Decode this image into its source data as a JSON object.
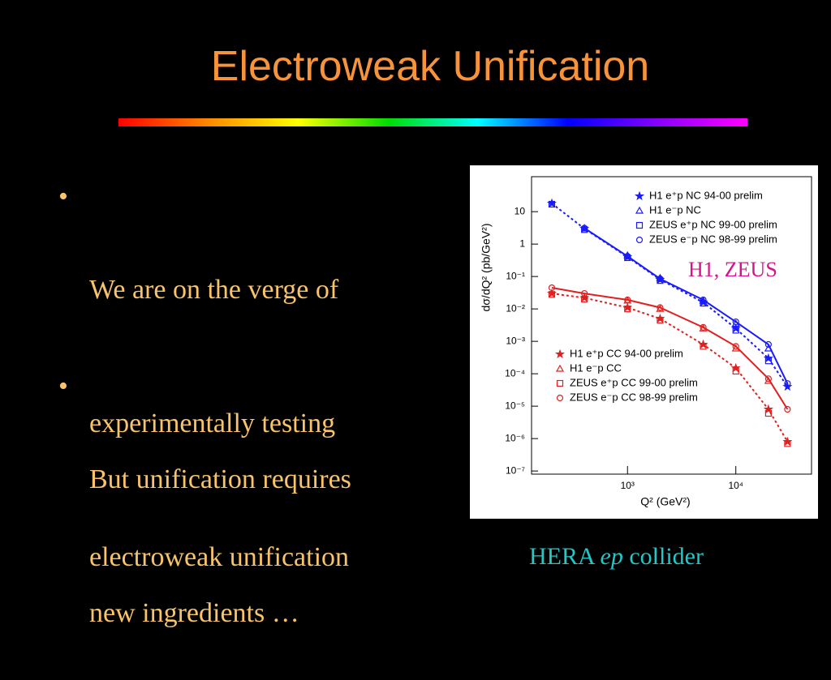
{
  "title": "Electroweak Unification",
  "bullets": [
    {
      "lines": [
        "We are on the verge of",
        "experimentally testing",
        "electroweak unification"
      ]
    },
    {
      "lines": [
        "But unification requires",
        "new ingredients …"
      ]
    }
  ],
  "annotation": "H1, ZEUS",
  "caption": {
    "prefix": "HERA ",
    "emphasis": "ep",
    "suffix": " collider"
  },
  "chart_data": {
    "type": "scatter",
    "x_label": "Q² (GeV²)",
    "y_label": "dσ/dQ² (pb/GeV²)",
    "log_x": true,
    "log_y": true,
    "xlim": [
      130,
      50000
    ],
    "ylim": [
      8e-08,
      120
    ],
    "xticks": [
      {
        "value": 1000,
        "label": "10³"
      },
      {
        "value": 10000,
        "label": "10⁴"
      }
    ],
    "yticks": [
      10,
      1,
      {
        "value": 0.1,
        "label": "10⁻¹"
      },
      {
        "value": 0.01,
        "label": "10⁻²"
      },
      {
        "value": 0.001,
        "label": "10⁻³"
      },
      {
        "value": 0.0001,
        "label": "10⁻⁴"
      },
      {
        "value": 1e-05,
        "label": "10⁻⁵"
      },
      {
        "value": 1e-06,
        "label": "10⁻⁶"
      },
      {
        "value": 1e-07,
        "label": "10⁻⁷"
      }
    ],
    "x": [
      200,
      400,
      1000,
      2000,
      5000,
      10000,
      20000,
      30000
    ],
    "series": [
      {
        "name": "H1 e⁺p NC 94-00 prelim",
        "color": "#1a1aff",
        "marker": "star",
        "line": "dotted",
        "legend": "top",
        "values": [
          18,
          3,
          0.4,
          0.08,
          0.016,
          0.0025,
          0.0003,
          4e-05
        ]
      },
      {
        "name": "H1 e⁻p NC",
        "color": "#1a1aff",
        "marker": "triangle",
        "legend": "top",
        "values": [
          null,
          null,
          0.45,
          0.09,
          0.018,
          0.0035,
          0.0006,
          null
        ]
      },
      {
        "name": "ZEUS e⁺p NC 99-00 prelim",
        "color": "#1a1aff",
        "marker": "square",
        "legend": "top",
        "values": [
          17,
          2.8,
          0.38,
          0.075,
          0.015,
          0.0022,
          0.00025,
          null
        ]
      },
      {
        "name": "ZEUS e⁻p NC 98-99 prelim",
        "color": "#1a1aff",
        "marker": "circle",
        "line": "solid",
        "legend": "top",
        "values": [
          null,
          3.1,
          0.42,
          0.085,
          0.019,
          0.004,
          0.0008,
          5e-05
        ]
      },
      {
        "name": "H1 e⁺p CC 94-00 prelim",
        "color": "#e02020",
        "marker": "star",
        "line": "dotted",
        "legend": "bottom",
        "values": [
          0.03,
          0.022,
          0.011,
          0.005,
          0.0008,
          0.00015,
          8e-06,
          8e-07
        ]
      },
      {
        "name": "H1 e⁻p CC",
        "color": "#e02020",
        "marker": "triangle",
        "legend": "bottom",
        "values": [
          null,
          null,
          0.018,
          0.01,
          0.0025,
          0.0006,
          6e-05,
          null
        ]
      },
      {
        "name": "ZEUS e⁺p CC 99-00 prelim",
        "color": "#e02020",
        "marker": "square",
        "legend": "bottom",
        "values": [
          0.028,
          0.02,
          0.01,
          0.0045,
          0.0007,
          0.00012,
          6e-06,
          7e-07
        ]
      },
      {
        "name": "ZEUS e⁻p CC 98-99 prelim",
        "color": "#e02020",
        "marker": "circle",
        "line": "solid",
        "legend": "bottom",
        "values": [
          0.045,
          0.03,
          0.019,
          0.011,
          0.0027,
          0.0007,
          7e-05,
          8e-06
        ]
      }
    ]
  }
}
